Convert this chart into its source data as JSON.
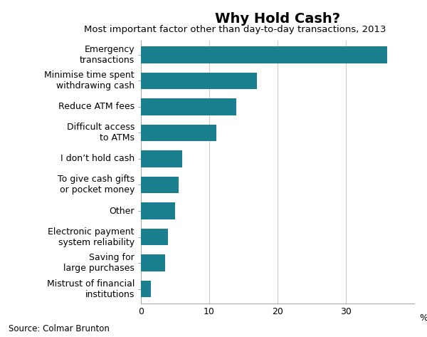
{
  "title": "Why Hold Cash?",
  "subtitle": "Most important factor other than day-to-day transactions, 2013",
  "source": "Source: Colmar Brunton",
  "bar_color": "#1a7f8e",
  "background_color": "#ffffff",
  "categories": [
    "Emergency\ntransactions",
    "Minimise time spent\nwithdrawing cash",
    "Reduce ATM fees",
    "Difficult access\nto ATMs",
    "I don’t hold cash",
    "To give cash gifts\nor pocket money",
    "Other",
    "Electronic payment\nsystem reliability",
    "Saving for\nlarge purchases",
    "Mistrust of financial\ninstitutions"
  ],
  "values": [
    36,
    17,
    14,
    11,
    6,
    5.5,
    5,
    4,
    3.5,
    1.5
  ],
  "xlim": [
    0,
    40
  ],
  "xticks": [
    0,
    10,
    20,
    30
  ],
  "xlabel_percent": "%",
  "title_fontsize": 14,
  "subtitle_fontsize": 9.5,
  "tick_fontsize": 9,
  "label_fontsize": 9,
  "source_fontsize": 8.5,
  "grid_color": "#cccccc",
  "bar_height": 0.65,
  "spine_color": "#aaaaaa"
}
